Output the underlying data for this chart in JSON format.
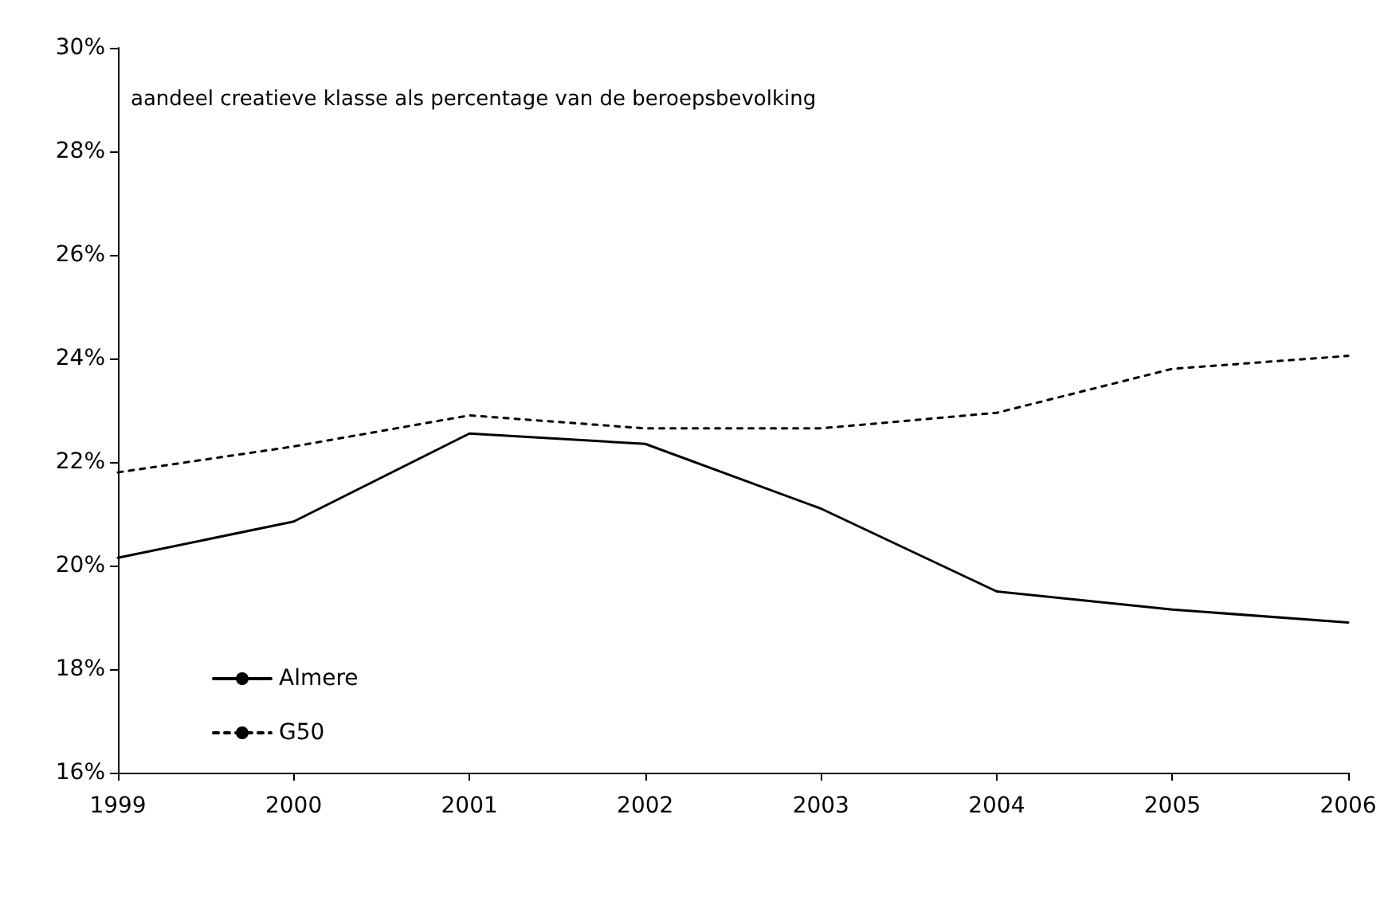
{
  "chart_data": {
    "type": "line",
    "annotations": [
      "aandeel creatieve klasse als percentage van de beroepsbevolking"
    ],
    "categories": [
      "1999",
      "2000",
      "2001",
      "2002",
      "2003",
      "2004",
      "2005",
      "2006"
    ],
    "series": [
      {
        "name": "Almere",
        "color": "#000000",
        "line_style": "solid",
        "values": [
          20.15,
          20.85,
          22.55,
          22.35,
          21.1,
          19.5,
          19.15,
          18.9
        ]
      },
      {
        "name": "G50",
        "color": "#000000",
        "line_style": "dotted",
        "values": [
          21.8,
          22.3,
          22.9,
          22.65,
          22.65,
          22.95,
          23.8,
          24.05
        ]
      }
    ],
    "ylim": [
      16,
      30
    ],
    "yticks": [
      {
        "value": 16,
        "label": "16%"
      },
      {
        "value": 18,
        "label": "18%"
      },
      {
        "value": 20,
        "label": "20%"
      },
      {
        "value": 22,
        "label": "22%"
      },
      {
        "value": 24,
        "label": "24%"
      },
      {
        "value": 26,
        "label": "26%"
      },
      {
        "value": 28,
        "label": "28%"
      },
      {
        "value": 30,
        "label": "30%"
      }
    ],
    "grid": false,
    "legend": "bottom left",
    "marker": "none"
  }
}
